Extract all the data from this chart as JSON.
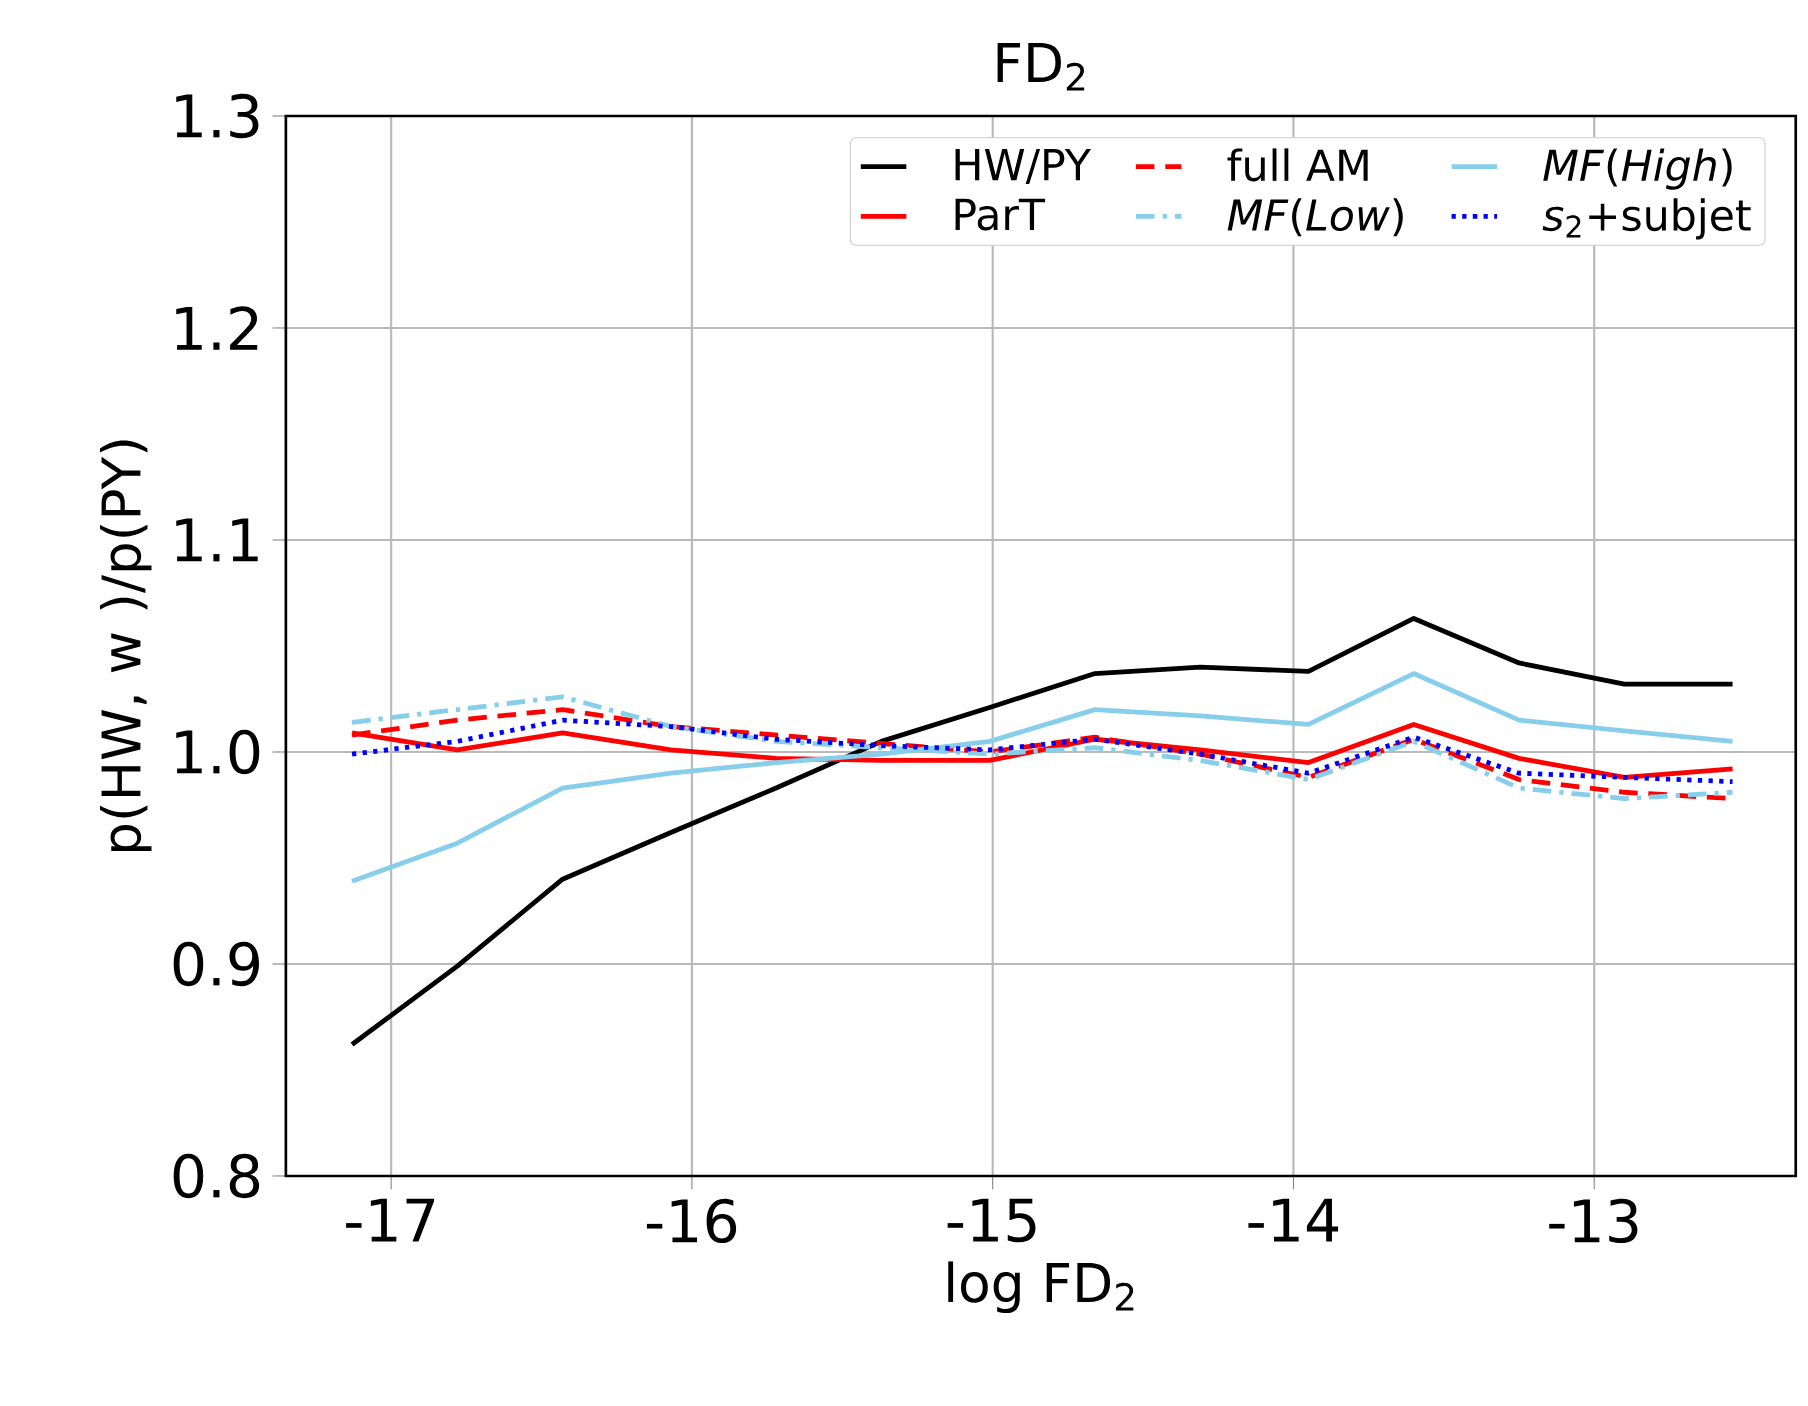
{
  "chart_data": {
    "type": "line",
    "title": "FD$_{2}$",
    "xlabel": "log FD$_{2}$",
    "ylabel": "p(HW, w )/p(PY)",
    "x": [
      -17.13,
      -16.78,
      -16.43,
      -16.07,
      -15.72,
      -15.37,
      -15.01,
      -14.66,
      -14.31,
      -13.95,
      -13.6,
      -13.25,
      -12.9,
      -12.54
    ],
    "series": [
      {
        "name": "HW/PY",
        "color": "#000000",
        "line_style": "solid",
        "values": [
          0.862,
          0.899,
          0.94,
          0.962,
          0.983,
          1.005,
          1.021,
          1.037,
          1.04,
          1.038,
          1.063,
          1.042,
          1.032,
          1.032
        ]
      },
      {
        "name": "ParT",
        "color": "#ff0000",
        "line_style": "solid",
        "values": [
          1.009,
          1.001,
          1.009,
          1.001,
          0.997,
          0.996,
          0.996,
          1.006,
          1.001,
          0.995,
          1.013,
          0.997,
          0.988,
          0.992
        ]
      },
      {
        "name": "full AM",
        "color": "#ff0000",
        "line_style": "dashed",
        "values": [
          1.008,
          1.015,
          1.02,
          1.012,
          1.008,
          1.004,
          1.0,
          1.007,
          0.999,
          0.988,
          1.006,
          0.987,
          0.981,
          0.978
        ]
      },
      {
        "name": "*MF*(*Low*)",
        "color": "#87ceeb",
        "line_style": "dashdot",
        "values": [
          1.014,
          1.02,
          1.026,
          1.012,
          1.005,
          1.002,
          0.999,
          1.002,
          0.996,
          0.987,
          1.005,
          0.983,
          0.978,
          0.981
        ]
      },
      {
        "name": "*MF*(*High*)",
        "color": "#87ceeb",
        "line_style": "solid",
        "values": [
          0.939,
          0.957,
          0.983,
          0.99,
          0.995,
          0.999,
          1.005,
          1.02,
          1.017,
          1.013,
          1.037,
          1.015,
          1.01,
          1.005
        ]
      },
      {
        "name": "*s*$_{2}$+subjet",
        "color": "#0000ff",
        "line_style": "dotted",
        "values": [
          0.999,
          1.005,
          1.015,
          1.012,
          1.006,
          1.003,
          1.001,
          1.006,
          0.999,
          0.99,
          1.007,
          0.99,
          0.988,
          0.986
        ]
      }
    ],
    "xlim": [
      -17.35,
      -12.33
    ],
    "xticks": [
      -17,
      -16,
      -15,
      -14,
      -13
    ],
    "ylim": [
      0.8,
      1.3
    ],
    "yticks": [
      {
        "value": 0.8,
        "label": "0.8"
      },
      {
        "value": 0.9,
        "label": "0.9"
      },
      {
        "value": 1.0,
        "label": "1.0"
      },
      {
        "value": 1.1,
        "label": "1.1"
      },
      {
        "value": 1.2,
        "label": "1.2"
      },
      {
        "value": 1.3,
        "label": "1.3"
      }
    ],
    "grid": true,
    "legend": "top right"
  }
}
